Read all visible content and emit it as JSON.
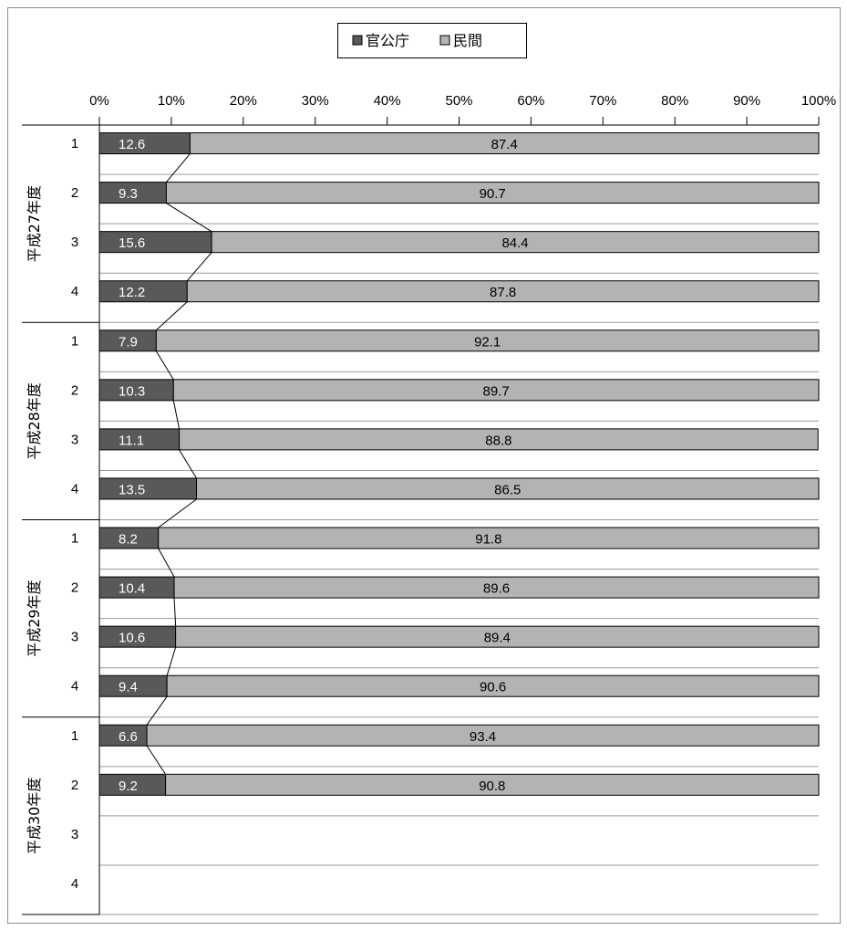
{
  "chart_data": {
    "type": "bar",
    "orientation": "horizontal",
    "stacked": true,
    "percent": true,
    "xlim": [
      0,
      100
    ],
    "x_ticks": [
      "0%",
      "10%",
      "20%",
      "30%",
      "40%",
      "50%",
      "60%",
      "70%",
      "80%",
      "90%",
      "100%"
    ],
    "legend": {
      "position": "top",
      "entries": [
        "官公庁",
        "民間"
      ]
    },
    "groups": [
      {
        "label": "平成27年度",
        "quarters": [
          "1",
          "2",
          "3",
          "4"
        ]
      },
      {
        "label": "平成28年度",
        "quarters": [
          "1",
          "2",
          "3",
          "4"
        ]
      },
      {
        "label": "平成29年度",
        "quarters": [
          "1",
          "2",
          "3",
          "4"
        ]
      },
      {
        "label": "平成30年度",
        "quarters": [
          "1",
          "2",
          "3",
          "4"
        ]
      }
    ],
    "series": [
      {
        "name": "官公庁",
        "color": "#595959",
        "values": [
          12.6,
          9.3,
          15.6,
          12.2,
          7.9,
          10.3,
          11.1,
          13.5,
          8.2,
          10.4,
          10.6,
          9.4,
          6.6,
          9.2,
          null,
          null
        ]
      },
      {
        "name": "民間",
        "color": "#b3b3b3",
        "values": [
          87.4,
          90.7,
          84.4,
          87.8,
          92.1,
          89.7,
          88.8,
          86.5,
          91.8,
          89.6,
          89.4,
          90.6,
          93.4,
          90.8,
          null,
          null
        ]
      }
    ],
    "series_lines": true,
    "grid": true
  }
}
